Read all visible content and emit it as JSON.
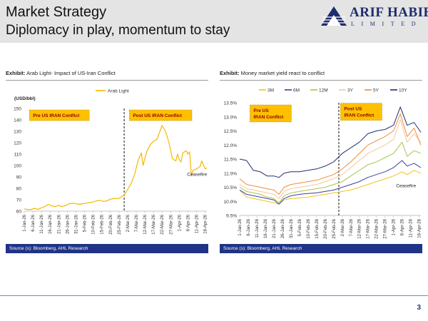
{
  "header": {
    "title": "Market Strategy",
    "subtitle": "Diplomacy in play, momentum to stay"
  },
  "logo": {
    "name": "ARIF HABIB",
    "sub": "LIMITED"
  },
  "page_number": "3",
  "colors": {
    "brand_navy": "#1f3387",
    "annotation_fill": "#ffc000",
    "oil_line": "#f5b800"
  },
  "left_panel": {
    "heading_bold": "Exhibit:",
    "heading_text": "Arab Light- Impact of US-Iran Conflict",
    "source": "Source (s): Bloomberg, AHL Research"
  },
  "right_panel": {
    "heading_bold": "Exhibit:",
    "heading_text": "Money market yield react to conflict",
    "source": "Source (s): Bloomberg, AHL Research"
  },
  "date_ticks": [
    "1-Jan-26",
    "6-Jan-26",
    "11-Jan-26",
    "16-Jan-26",
    "21-Jan-26",
    "26-Jan-26",
    "31-Jan-26",
    "5-Feb-26",
    "10-Feb-26",
    "15-Feb-26",
    "20-Feb-26",
    "25-Feb-26",
    "2-Mar-26",
    "7-Mar-26",
    "12-Mar-26",
    "17-Mar-26",
    "22-Mar-26",
    "27-Mar-26",
    "1-Apr-26",
    "6-Apr-26",
    "11-Apr-26",
    "16-Apr-26"
  ],
  "chart_data": [
    {
      "type": "line",
      "title": "",
      "ylabel": "(USD/bbl)",
      "xlabel": "",
      "ylim": [
        60,
        150
      ],
      "yticks": [
        60,
        70,
        80,
        90,
        100,
        110,
        120,
        130,
        140,
        150
      ],
      "y_tick_labels": [
        "60",
        "70",
        "80",
        "90",
        "100",
        "110",
        "120",
        "130",
        "140",
        "150"
      ],
      "x_type": "date",
      "grid": false,
      "legend_position": "top-right",
      "series": [
        {
          "name": "Arab Light",
          "color": "#f5b800",
          "points": [
            [
              "2026-01-01",
              62.0
            ],
            [
              "2026-01-03",
              61.5
            ],
            [
              "2026-01-05",
              61.5
            ],
            [
              "2026-01-07",
              62.5
            ],
            [
              "2026-01-09",
              61.5
            ],
            [
              "2026-01-11",
              63.0
            ],
            [
              "2026-01-13",
              64.0
            ],
            [
              "2026-01-15",
              66.0
            ],
            [
              "2026-01-17",
              64.5
            ],
            [
              "2026-01-19",
              64.0
            ],
            [
              "2026-01-21",
              65.0
            ],
            [
              "2026-01-23",
              64.0
            ],
            [
              "2026-01-25",
              65.0
            ],
            [
              "2026-01-27",
              66.5
            ],
            [
              "2026-01-29",
              67.0
            ],
            [
              "2026-01-31",
              66.5
            ],
            [
              "2026-02-02",
              66.0
            ],
            [
              "2026-02-04",
              66.5
            ],
            [
              "2026-02-06",
              67.0
            ],
            [
              "2026-02-08",
              67.5
            ],
            [
              "2026-02-10",
              68.0
            ],
            [
              "2026-02-12",
              69.0
            ],
            [
              "2026-02-14",
              69.5
            ],
            [
              "2026-02-16",
              68.5
            ],
            [
              "2026-02-18",
              69.0
            ],
            [
              "2026-02-20",
              70.5
            ],
            [
              "2026-02-22",
              71.0
            ],
            [
              "2026-02-24",
              71.0
            ],
            [
              "2026-02-26",
              72.0
            ],
            [
              "2026-02-28",
              74.0
            ],
            [
              "2026-03-02",
              79.0
            ],
            [
              "2026-03-04",
              84.0
            ],
            [
              "2026-03-06",
              92.0
            ],
            [
              "2026-03-08",
              104.0
            ],
            [
              "2026-03-10",
              111.0
            ],
            [
              "2026-03-11",
              100.0
            ],
            [
              "2026-03-13",
              112.0
            ],
            [
              "2026-03-15",
              118.0
            ],
            [
              "2026-03-17",
              121.0
            ],
            [
              "2026-03-19",
              123.0
            ],
            [
              "2026-03-21",
              131.0
            ],
            [
              "2026-03-22",
              135.0
            ],
            [
              "2026-03-24",
              130.0
            ],
            [
              "2026-03-26",
              120.0
            ],
            [
              "2026-03-28",
              106.0
            ],
            [
              "2026-03-30",
              104.0
            ],
            [
              "2026-03-31",
              110.0
            ],
            [
              "2026-04-01",
              105.0
            ],
            [
              "2026-04-02",
              103.0
            ],
            [
              "2026-04-03",
              111.0
            ],
            [
              "2026-04-05",
              113.0
            ],
            [
              "2026-04-06",
              110.0
            ],
            [
              "2026-04-07",
              112.0
            ],
            [
              "2026-04-08",
              91.0
            ],
            [
              "2026-04-09",
              96.0
            ],
            [
              "2026-04-11",
              97.0
            ],
            [
              "2026-04-13",
              99.0
            ],
            [
              "2026-04-14",
              104.0
            ],
            [
              "2026-04-16",
              97.0
            ],
            [
              "2026-04-17",
              98.0
            ]
          ]
        }
      ],
      "conflict_start": "2026-02-28",
      "annotations": [
        {
          "text": "Pre US IRAN Conflict",
          "style": "box",
          "x": "2026-01-04",
          "y": 144
        },
        {
          "text": "Post US IRAN Conflict",
          "style": "box",
          "x": "2026-03-03",
          "y": 144
        },
        {
          "text": "Ceasefire",
          "style": "text",
          "x": "2026-04-08",
          "y": 91
        }
      ]
    },
    {
      "type": "line",
      "title": "",
      "ylabel": "",
      "xlabel": "",
      "ylim": [
        9.5,
        13.5
      ],
      "yticks": [
        9.5,
        10.0,
        10.5,
        11.0,
        11.5,
        12.0,
        12.5,
        13.0,
        13.5
      ],
      "y_tick_labels": [
        "9.5%",
        "10.0%",
        "10.5%",
        "11.0%",
        "11.5%",
        "12.0%",
        "12.5%",
        "13.0%",
        "13.5%"
      ],
      "x_type": "date",
      "grid": false,
      "legend_position": "top",
      "series": [
        {
          "name": "3M",
          "color": "#f0c419",
          "points": [
            [
              "2026-01-01",
              10.4
            ],
            [
              "2026-01-05",
              10.15
            ],
            [
              "2026-01-09",
              10.1
            ],
            [
              "2026-01-13",
              10.05
            ],
            [
              "2026-01-17",
              10.0
            ],
            [
              "2026-01-21",
              9.95
            ],
            [
              "2026-01-24",
              9.9
            ],
            [
              "2026-01-27",
              10.05
            ],
            [
              "2026-01-31",
              10.1
            ],
            [
              "2026-02-05",
              10.12
            ],
            [
              "2026-02-10",
              10.15
            ],
            [
              "2026-02-15",
              10.2
            ],
            [
              "2026-02-20",
              10.25
            ],
            [
              "2026-02-25",
              10.3
            ],
            [
              "2026-03-02",
              10.35
            ],
            [
              "2026-03-07",
              10.4
            ],
            [
              "2026-03-12",
              10.5
            ],
            [
              "2026-03-17",
              10.6
            ],
            [
              "2026-03-22",
              10.7
            ],
            [
              "2026-03-27",
              10.8
            ],
            [
              "2026-04-01",
              10.9
            ],
            [
              "2026-04-06",
              11.05
            ],
            [
              "2026-04-09",
              10.95
            ],
            [
              "2026-04-13",
              11.1
            ],
            [
              "2026-04-17",
              11.0
            ]
          ]
        },
        {
          "name": "6M",
          "color": "#3b3f9f",
          "points": [
            [
              "2026-01-01",
              10.4
            ],
            [
              "2026-01-05",
              10.25
            ],
            [
              "2026-01-09",
              10.2
            ],
            [
              "2026-01-13",
              10.15
            ],
            [
              "2026-01-17",
              10.1
            ],
            [
              "2026-01-21",
              10.05
            ],
            [
              "2026-01-24",
              9.9
            ],
            [
              "2026-01-27",
              10.1
            ],
            [
              "2026-01-31",
              10.2
            ],
            [
              "2026-02-05",
              10.25
            ],
            [
              "2026-02-10",
              10.28
            ],
            [
              "2026-02-15",
              10.3
            ],
            [
              "2026-02-20",
              10.35
            ],
            [
              "2026-02-25",
              10.4
            ],
            [
              "2026-03-02",
              10.5
            ],
            [
              "2026-03-07",
              10.6
            ],
            [
              "2026-03-12",
              10.7
            ],
            [
              "2026-03-17",
              10.85
            ],
            [
              "2026-03-22",
              10.95
            ],
            [
              "2026-03-27",
              11.05
            ],
            [
              "2026-04-01",
              11.2
            ],
            [
              "2026-04-06",
              11.45
            ],
            [
              "2026-04-09",
              11.25
            ],
            [
              "2026-04-13",
              11.35
            ],
            [
              "2026-04-17",
              11.2
            ]
          ]
        },
        {
          "name": "12M",
          "color": "#a7c64c",
          "points": [
            [
              "2026-01-01",
              10.5
            ],
            [
              "2026-01-05",
              10.35
            ],
            [
              "2026-01-09",
              10.3
            ],
            [
              "2026-01-13",
              10.25
            ],
            [
              "2026-01-17",
              10.15
            ],
            [
              "2026-01-21",
              10.1
            ],
            [
              "2026-01-24",
              9.95
            ],
            [
              "2026-01-27",
              10.2
            ],
            [
              "2026-01-31",
              10.3
            ],
            [
              "2026-02-05",
              10.35
            ],
            [
              "2026-02-10",
              10.4
            ],
            [
              "2026-02-15",
              10.45
            ],
            [
              "2026-02-20",
              10.5
            ],
            [
              "2026-02-25",
              10.6
            ],
            [
              "2026-03-02",
              10.7
            ],
            [
              "2026-03-07",
              10.9
            ],
            [
              "2026-03-12",
              11.1
            ],
            [
              "2026-03-17",
              11.3
            ],
            [
              "2026-03-22",
              11.4
            ],
            [
              "2026-03-27",
              11.55
            ],
            [
              "2026-04-01",
              11.7
            ],
            [
              "2026-04-06",
              12.1
            ],
            [
              "2026-04-09",
              11.6
            ],
            [
              "2026-04-13",
              11.8
            ],
            [
              "2026-04-17",
              11.7
            ]
          ]
        },
        {
          "name": "3Y",
          "color": "#f4c7a0",
          "points": [
            [
              "2026-01-01",
              10.6
            ],
            [
              "2026-01-05",
              10.45
            ],
            [
              "2026-01-09",
              10.4
            ],
            [
              "2026-01-13",
              10.35
            ],
            [
              "2026-01-17",
              10.3
            ],
            [
              "2026-01-21",
              10.25
            ],
            [
              "2026-01-24",
              10.1
            ],
            [
              "2026-01-27",
              10.35
            ],
            [
              "2026-01-31",
              10.45
            ],
            [
              "2026-02-05",
              10.5
            ],
            [
              "2026-02-10",
              10.55
            ],
            [
              "2026-02-15",
              10.6
            ],
            [
              "2026-02-20",
              10.7
            ],
            [
              "2026-02-25",
              10.8
            ],
            [
              "2026-03-02",
              10.95
            ],
            [
              "2026-03-07",
              11.2
            ],
            [
              "2026-03-12",
              11.45
            ],
            [
              "2026-03-17",
              11.7
            ],
            [
              "2026-03-22",
              11.85
            ],
            [
              "2026-03-27",
              12.0
            ],
            [
              "2026-04-01",
              12.2
            ],
            [
              "2026-04-05",
              12.9
            ],
            [
              "2026-04-09",
              12.1
            ],
            [
              "2026-04-13",
              12.4
            ],
            [
              "2026-04-17",
              12.1
            ]
          ]
        },
        {
          "name": "5Y",
          "color": "#f08c3c",
          "points": [
            [
              "2026-01-01",
              10.8
            ],
            [
              "2026-01-05",
              10.6
            ],
            [
              "2026-01-09",
              10.55
            ],
            [
              "2026-01-13",
              10.5
            ],
            [
              "2026-01-17",
              10.45
            ],
            [
              "2026-01-21",
              10.4
            ],
            [
              "2026-01-24",
              10.25
            ],
            [
              "2026-01-27",
              10.5
            ],
            [
              "2026-01-31",
              10.6
            ],
            [
              "2026-02-05",
              10.65
            ],
            [
              "2026-02-10",
              10.7
            ],
            [
              "2026-02-15",
              10.75
            ],
            [
              "2026-02-20",
              10.85
            ],
            [
              "2026-02-25",
              10.95
            ],
            [
              "2026-03-02",
              11.15
            ],
            [
              "2026-03-07",
              11.4
            ],
            [
              "2026-03-12",
              11.7
            ],
            [
              "2026-03-17",
              12.0
            ],
            [
              "2026-03-22",
              12.15
            ],
            [
              "2026-03-27",
              12.3
            ],
            [
              "2026-04-01",
              12.5
            ],
            [
              "2026-04-05",
              13.1
            ],
            [
              "2026-04-09",
              12.3
            ],
            [
              "2026-04-13",
              12.6
            ],
            [
              "2026-04-17",
              12.0
            ]
          ]
        },
        {
          "name": "10Y",
          "color": "#1f2f6e",
          "points": [
            [
              "2026-01-01",
              11.5
            ],
            [
              "2026-01-05",
              11.45
            ],
            [
              "2026-01-09",
              11.1
            ],
            [
              "2026-01-13",
              11.05
            ],
            [
              "2026-01-17",
              10.9
            ],
            [
              "2026-01-21",
              10.9
            ],
            [
              "2026-01-24",
              10.85
            ],
            [
              "2026-01-27",
              11.0
            ],
            [
              "2026-01-31",
              11.05
            ],
            [
              "2026-02-05",
              11.05
            ],
            [
              "2026-02-10",
              11.1
            ],
            [
              "2026-02-15",
              11.15
            ],
            [
              "2026-02-20",
              11.25
            ],
            [
              "2026-02-25",
              11.4
            ],
            [
              "2026-03-02",
              11.7
            ],
            [
              "2026-03-07",
              11.9
            ],
            [
              "2026-03-12",
              12.1
            ],
            [
              "2026-03-17",
              12.4
            ],
            [
              "2026-03-22",
              12.5
            ],
            [
              "2026-03-27",
              12.55
            ],
            [
              "2026-04-01",
              12.7
            ],
            [
              "2026-04-05",
              13.35
            ],
            [
              "2026-04-09",
              12.7
            ],
            [
              "2026-04-13",
              12.8
            ],
            [
              "2026-04-17",
              12.45
            ]
          ]
        }
      ],
      "conflict_start": "2026-02-28",
      "annotations": [
        {
          "text": "Pre US IRAN Conflict",
          "style": "box",
          "x": "2026-01-07",
          "y": 13.12
        },
        {
          "text": "Post US IRAN Conflict",
          "style": "box",
          "x": "2026-03-01",
          "y": 13.18
        },
        {
          "text": "Ceasefire",
          "style": "text",
          "x": "2026-04-05",
          "y": 10.5
        }
      ]
    }
  ]
}
